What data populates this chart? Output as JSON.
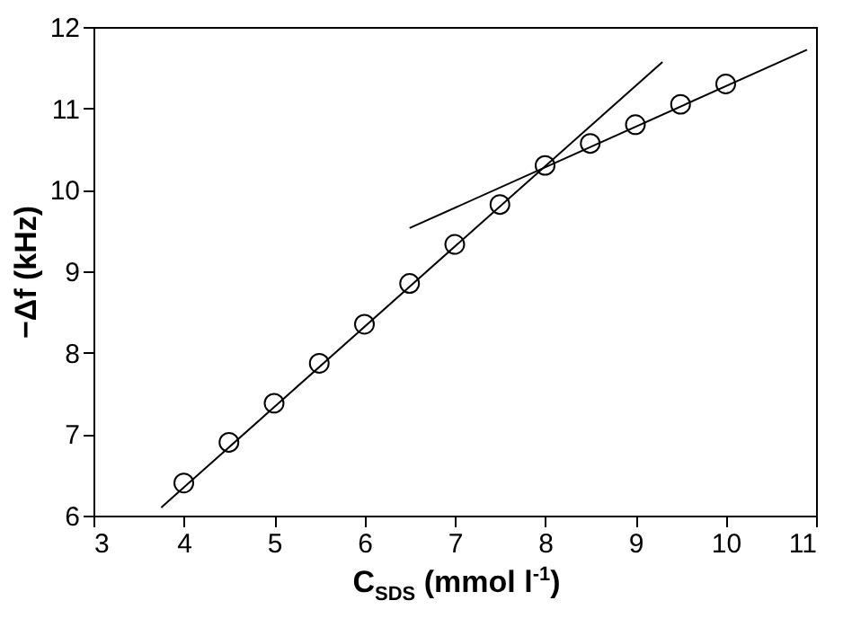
{
  "chart_data": {
    "type": "scatter",
    "xlabel": "C$_{SDS}$ (mmol l$^{-1}$)",
    "ylabel": "−Δf (kHz)",
    "xlim": [
      3,
      11
    ],
    "ylim": [
      6,
      12
    ],
    "xticks": [
      3,
      4,
      5,
      6,
      7,
      8,
      9,
      10,
      11
    ],
    "yticks": [
      6,
      7,
      8,
      9,
      10,
      11,
      12
    ],
    "grid": false,
    "series": [
      {
        "marker": "circle",
        "color": "#000000",
        "x": [
          4,
          4.5,
          5,
          5.5,
          6,
          6.5,
          7,
          7.5,
          8,
          8.5,
          9,
          9.5,
          10
        ],
        "values": [
          6.4,
          6.9,
          7.38,
          7.87,
          8.35,
          8.85,
          9.33,
          9.82,
          10.3,
          10.57,
          10.8,
          11.05,
          11.3
        ]
      },
      {
        "type": "line",
        "marker": "none",
        "color": "#000000",
        "x": [
          3.75,
          9.3
        ],
        "values": [
          6.1,
          11.57
        ]
      },
      {
        "type": "line",
        "marker": "none",
        "color": "#000000",
        "x": [
          6.5,
          10.9
        ],
        "values": [
          9.53,
          11.72
        ]
      }
    ]
  }
}
